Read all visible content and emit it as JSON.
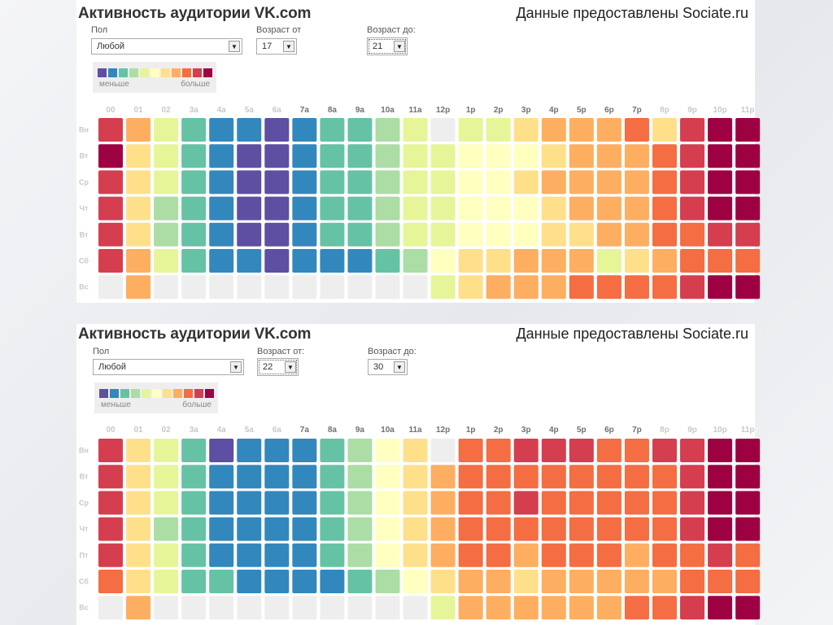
{
  "palette": [
    "#eeeeee",
    "#5e4fa2",
    "#3288bd",
    "#66c2a5",
    "#abdda4",
    "#e6f598",
    "#ffffbf",
    "#fee08b",
    "#fdae61",
    "#f46d43",
    "#d53e4f",
    "#9e0142"
  ],
  "legend_colors": [
    "#5e4fa2",
    "#3288bd",
    "#66c2a5",
    "#abdda4",
    "#e6f598",
    "#ffffbf",
    "#fee08b",
    "#fdae61",
    "#f46d43",
    "#d53e4f",
    "#9e0142"
  ],
  "top": {
    "title_prefix": "Активность аудитории ",
    "title_brand": "VK.com",
    "credit": "Данные предоставлены Sociate.ru",
    "gender_label": "Пол",
    "gender_value": "Любой",
    "age_from_label": "Возраст от",
    "age_from_value": "17",
    "age_to_label": "Возраст до:",
    "age_to_value": "21",
    "legend_low": "меньше",
    "legend_high": "больше"
  },
  "bottom": {
    "title_prefix": "Активность аудитории ",
    "title_brand": "VK.com",
    "credit": "Данные предоставлены Sociate.ru",
    "gender_label": "Пол",
    "gender_value": "Любой",
    "age_from_label": "Возраст от:",
    "age_from_value": "22",
    "age_to_label": "Возраст до:",
    "age_to_value": "30",
    "legend_low": "меньше",
    "legend_high": "больше"
  },
  "chart_data": [
    {
      "type": "heatmap",
      "title": "Активность аудитории VK.com (возраст 17–21)",
      "value_scale": "0 = нет данных, 1 = меньше … 11 = больше",
      "x": [
        "00",
        "01",
        "02",
        "3a",
        "4a",
        "5a",
        "6a",
        "7a",
        "8a",
        "9a",
        "10a",
        "11a",
        "12p",
        "1p",
        "2p",
        "3p",
        "4p",
        "5p",
        "6p",
        "7p",
        "8p",
        "9p",
        "10p",
        "11p"
      ],
      "x_strong": [
        false,
        false,
        false,
        false,
        false,
        false,
        false,
        true,
        true,
        true,
        true,
        true,
        true,
        true,
        true,
        true,
        true,
        true,
        true,
        true,
        false,
        false,
        false,
        false
      ],
      "y": [
        "Вн",
        "Вт",
        "Ср",
        "Чт",
        "Вт",
        "Сб",
        "Вс"
      ],
      "values": [
        [
          10,
          8,
          5,
          3,
          2,
          2,
          1,
          2,
          3,
          3,
          4,
          5,
          0,
          5,
          5,
          7,
          8,
          8,
          8,
          9,
          7,
          10,
          11,
          11
        ],
        [
          11,
          7,
          5,
          3,
          2,
          1,
          1,
          2,
          3,
          3,
          4,
          5,
          5,
          6,
          6,
          6,
          7,
          8,
          8,
          8,
          9,
          10,
          11,
          11
        ],
        [
          10,
          7,
          5,
          3,
          2,
          1,
          1,
          2,
          3,
          3,
          4,
          5,
          5,
          6,
          6,
          7,
          8,
          8,
          8,
          8,
          9,
          10,
          11,
          11
        ],
        [
          10,
          7,
          4,
          3,
          2,
          1,
          1,
          2,
          3,
          3,
          4,
          5,
          5,
          6,
          6,
          6,
          7,
          8,
          8,
          8,
          9,
          10,
          11,
          11
        ],
        [
          10,
          7,
          4,
          3,
          2,
          1,
          1,
          2,
          3,
          3,
          4,
          5,
          5,
          6,
          6,
          6,
          7,
          7,
          8,
          8,
          9,
          9,
          10,
          10
        ],
        [
          10,
          8,
          5,
          3,
          2,
          2,
          1,
          2,
          2,
          2,
          3,
          4,
          6,
          7,
          7,
          8,
          8,
          8,
          5,
          7,
          8,
          9,
          9,
          9
        ],
        [
          0,
          8,
          0,
          0,
          0,
          0,
          0,
          0,
          0,
          0,
          0,
          0,
          5,
          7,
          8,
          8,
          8,
          9,
          9,
          9,
          9,
          10,
          11,
          11
        ]
      ]
    },
    {
      "type": "heatmap",
      "title": "Активность аудитории VK.com (возраст 22–30)",
      "value_scale": "0 = нет данных, 1 = меньше … 11 = больше",
      "x": [
        "00",
        "01",
        "02",
        "3a",
        "4a",
        "5a",
        "6a",
        "7a",
        "8a",
        "9a",
        "10a",
        "11a",
        "12p",
        "1p",
        "2p",
        "3p",
        "4p",
        "5p",
        "6p",
        "7p",
        "8p",
        "9p",
        "10p",
        "11p"
      ],
      "x_strong": [
        false,
        false,
        false,
        false,
        false,
        false,
        false,
        true,
        true,
        true,
        true,
        true,
        true,
        true,
        true,
        true,
        true,
        true,
        true,
        true,
        false,
        false,
        false,
        false
      ],
      "y": [
        "Вн",
        "Вт",
        "Ср",
        "Чт",
        "Пт",
        "Сб",
        "Вс"
      ],
      "values": [
        [
          10,
          7,
          5,
          3,
          1,
          2,
          2,
          2,
          3,
          4,
          6,
          7,
          0,
          9,
          9,
          10,
          10,
          10,
          9,
          9,
          10,
          10,
          11,
          11
        ],
        [
          10,
          7,
          5,
          3,
          2,
          2,
          2,
          2,
          3,
          4,
          6,
          7,
          8,
          9,
          9,
          9,
          9,
          9,
          9,
          9,
          9,
          10,
          11,
          11
        ],
        [
          10,
          7,
          5,
          3,
          2,
          2,
          2,
          2,
          3,
          4,
          6,
          7,
          8,
          9,
          9,
          10,
          9,
          9,
          9,
          9,
          9,
          10,
          11,
          11
        ],
        [
          10,
          7,
          4,
          3,
          2,
          2,
          2,
          2,
          3,
          4,
          6,
          7,
          8,
          9,
          9,
          9,
          9,
          9,
          9,
          9,
          9,
          10,
          11,
          11
        ],
        [
          10,
          7,
          5,
          3,
          2,
          2,
          2,
          2,
          3,
          4,
          6,
          7,
          8,
          9,
          9,
          8,
          9,
          9,
          9,
          8,
          9,
          9,
          10,
          9
        ],
        [
          9,
          7,
          5,
          3,
          3,
          2,
          2,
          2,
          2,
          3,
          4,
          6,
          7,
          8,
          8,
          7,
          8,
          8,
          8,
          8,
          8,
          9,
          9,
          9
        ],
        [
          0,
          8,
          0,
          0,
          0,
          0,
          0,
          0,
          0,
          0,
          0,
          0,
          5,
          8,
          8,
          8,
          8,
          8,
          8,
          9,
          9,
          10,
          11,
          11
        ]
      ]
    }
  ]
}
